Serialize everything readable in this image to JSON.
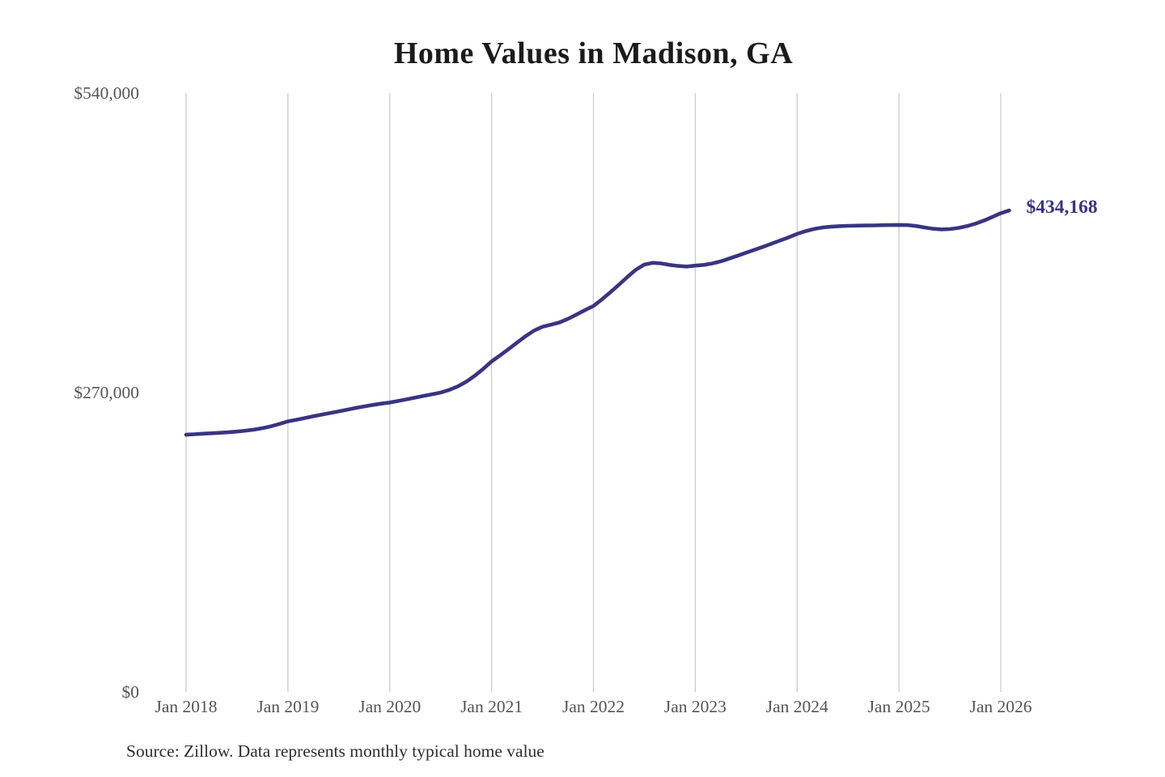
{
  "chart_data": {
    "type": "line",
    "title": "Home Values in Madison, GA",
    "xlabel": "",
    "ylabel": "",
    "ylim": [
      0,
      540000
    ],
    "grid": "vertical-only",
    "legend": "none",
    "frequency": "monthly",
    "start_month": "Jan 2018",
    "months_per_tick": 12,
    "x_tick_labels": [
      "Jan 2018",
      "Jan 2019",
      "Jan 2020",
      "Jan 2021",
      "Jan 2022",
      "Jan 2023",
      "Jan 2024",
      "Jan 2025",
      "Jan 2026"
    ],
    "y_ticks": [
      {
        "value": 0,
        "label": "$0"
      },
      {
        "value": 270000,
        "label": "$270,000"
      },
      {
        "value": 540000,
        "label": "$540,000"
      }
    ],
    "series": [
      {
        "name": "Typical home value",
        "values": [
          232000,
          232400,
          232900,
          233300,
          233700,
          234200,
          234800,
          235600,
          236600,
          237900,
          239600,
          241700,
          244000,
          245500,
          247000,
          248600,
          250100,
          251600,
          253100,
          254600,
          256100,
          257500,
          258800,
          260000,
          261000,
          262400,
          263900,
          265400,
          267000,
          268500,
          270000,
          272300,
          275500,
          279700,
          285000,
          291200,
          298000,
          303500,
          309200,
          315000,
          320800,
          325800,
          329300,
          331200,
          333200,
          336400,
          340300,
          344300,
          348000,
          354000,
          360500,
          367200,
          374200,
          380700,
          385400,
          387000,
          386400,
          385100,
          384100,
          383600,
          384400,
          385100,
          386400,
          388300,
          390800,
          393400,
          396100,
          398700,
          401400,
          404300,
          407100,
          409900,
          413000,
          415500,
          417500,
          418800,
          419500,
          420000,
          420300,
          420500,
          420600,
          420700,
          420900,
          421000,
          421100,
          421000,
          420200,
          418900,
          417700,
          417100,
          417400,
          418400,
          420000,
          422200,
          425000,
          428300,
          431700,
          434168
        ]
      }
    ],
    "end_label": "$434,168",
    "final_value": 434168
  },
  "source": "Source: Zillow. Data represents monthly typical home value",
  "colors": {
    "line": "#3a3482",
    "end_label": "#3a3482",
    "grid": "#cccccc",
    "axis_text": "#555555",
    "title": "#1b1b1b",
    "source_text": "#2f2f2f",
    "background": "#ffffff"
  }
}
